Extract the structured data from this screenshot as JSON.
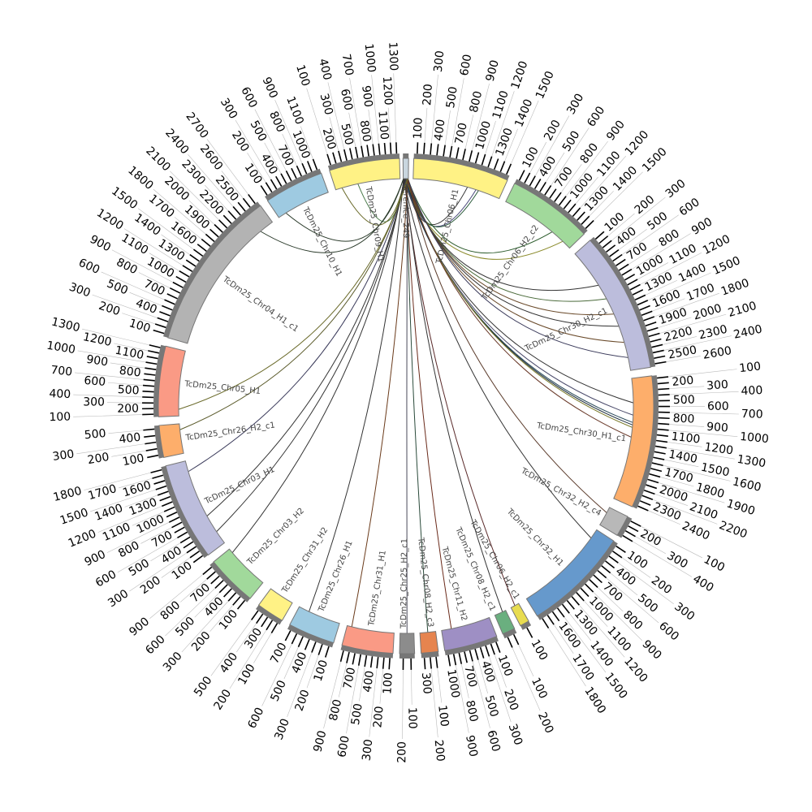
{
  "segments": [
    {
      "name": "berenice_249",
      "label": "berenice_249",
      "start": 359.3,
      "end": 360.6,
      "color": "#c9d6df",
      "max_tick": 0
    },
    {
      "name": "TcDm25_Chr06_H1",
      "label": "TcDm25_Chr06_H1",
      "start": 1.8,
      "end": 24.2,
      "color": "#fff285",
      "max_tick": 1500
    },
    {
      "name": "TcDm25_Chr06_H2_c2",
      "label": "TcDm25_Chr06_H2_c2",
      "start": 26,
      "end": 46,
      "color": "#a1d99b",
      "max_tick": 1500
    },
    {
      "name": "TcDm25_Chr30_H2_c1",
      "label": "TcDm25_Chr30_H2_c1",
      "start": 48,
      "end": 81,
      "color": "#bcbddc",
      "max_tick": 2600
    },
    {
      "name": "TcDm25_Chr30_H1_c1",
      "label": "TcDm25_Chr30_H1_c1",
      "start": 83,
      "end": 114,
      "color": "#fdae6b",
      "max_tick": 2400
    },
    {
      "name": "TcDm25_Chr32_H2_c4",
      "label": "TcDm25_Chr32_H2_c4",
      "start": 116.5,
      "end": 121.5,
      "color": "#b8b8b8",
      "max_tick": 400
    },
    {
      "name": "TcDm25_Chr32_H1",
      "label": "TcDm25_Chr32_H1",
      "start": 123,
      "end": 148,
      "color": "#6699cc",
      "max_tick": 1800
    },
    {
      "name": "TcDm25_Chr06_H2_c1",
      "label": "TcDm25_Chr06_H2_c1",
      "start": 150.3,
      "end": 152.5,
      "color": "#e8dc50",
      "max_tick": 100
    },
    {
      "name": "TcDm25_Chr08_H2_c1",
      "label": "TcDm25_Chr08_H2_c1",
      "start": 154,
      "end": 157,
      "color": "#6aaf7f",
      "max_tick": 200
    },
    {
      "name": "TcDm25_Chr11_H2",
      "label": "TcDm25_Chr11_H2",
      "start": 158.5,
      "end": 171,
      "color": "#9e8fc4",
      "max_tick": 1000
    },
    {
      "name": "TcDm25_Chr08_H2_c3",
      "label": "TcDm25_Chr08_H2_c3",
      "start": 172.5,
      "end": 176.5,
      "color": "#e6844f",
      "max_tick": 300
    },
    {
      "name": "TcDm25_Chr25_H2_c1",
      "label": "TcDm25_Chr25_H2_c1",
      "start": 178,
      "end": 181.5,
      "color": "#8c8c8c",
      "max_tick": 200
    },
    {
      "name": "TcDm25_Chr31_H1",
      "label": "TcDm25_Chr31_H1",
      "start": 183,
      "end": 195,
      "color": "#fa9a85",
      "max_tick": 900
    },
    {
      "name": "TcDm25_Chr26_H1",
      "label": "TcDm25_Chr26_H1",
      "start": 197,
      "end": 208,
      "color": "#9ecae1",
      "max_tick": 700
    },
    {
      "name": "TcDm25_Chr31_H2",
      "label": "TcDm25_Chr31_H2",
      "start": 210,
      "end": 216.5,
      "color": "#fff285",
      "max_tick": 500
    },
    {
      "name": "TcDm25_Chr03_H2",
      "label": "TcDm25_Chr03_H2",
      "start": 219,
      "end": 231,
      "color": "#a1d99b",
      "max_tick": 900
    },
    {
      "name": "TcDm25_Chr03_H1",
      "label": "TcDm25_Chr03_H1",
      "start": 233,
      "end": 256,
      "color": "#bcbddc",
      "max_tick": 1800
    },
    {
      "name": "TcDm25_Chr26_H2_c1",
      "label": "TcDm25_Chr26_H2_c1",
      "start": 258,
      "end": 265.5,
      "color": "#fdae6b",
      "max_tick": 500
    },
    {
      "name": "TcDm25_Chr05_H1",
      "label": "TcDm25_Chr05_H1",
      "start": 267.5,
      "end": 284,
      "color": "#fa9a85",
      "max_tick": 1300
    },
    {
      "name": "TcDm25_Chr04_H1_c1",
      "label": "TcDm25_Chr04_H1_c1",
      "start": 286,
      "end": 324,
      "color": "#b3b3b3",
      "max_tick": 2700
    },
    {
      "name": "TcDm25_Chr10_H1",
      "label": "TcDm25_Chr10_H1",
      "start": 326,
      "end": 340,
      "color": "#9ecae1",
      "max_tick": 1100
    },
    {
      "name": "TcDm25_Chr09_H1",
      "label": "TcDm25_Chr09_H1",
      "start": 342,
      "end": 358.5,
      "color": "#fff285",
      "max_tick": 1300
    }
  ],
  "links": [
    {
      "source": "berenice_249",
      "target": "TcDm25_Chr10_H1",
      "pos": 0.15,
      "color": "#2a3a2a"
    },
    {
      "source": "berenice_249",
      "target": "TcDm25_Chr09_H1",
      "pos": 0.35,
      "color": "#4a7a4a"
    },
    {
      "source": "berenice_249",
      "target": "TcDm25_Chr09_H1",
      "pos": 0.1,
      "color": "#6a6a2a"
    },
    {
      "source": "berenice_249",
      "target": "TcDm25_Chr06_H1",
      "pos": 0.62,
      "color": "#333333"
    },
    {
      "source": "berenice_249",
      "target": "TcDm25_Chr06_H1",
      "pos": 0.72,
      "color": "#4a4a7a"
    },
    {
      "source": "berenice_249",
      "target": "TcDm25_Chr06_H1",
      "pos": 0.75,
      "color": "#2a5a3a"
    },
    {
      "source": "berenice_249",
      "target": "TcDm25_Chr06_H2_c2",
      "pos": 0.7,
      "color": "#2a5a2a"
    },
    {
      "source": "berenice_249",
      "target": "TcDm25_Chr06_H2_c2",
      "pos": 0.88,
      "color": "#8a8a2a"
    },
    {
      "source": "berenice_249",
      "target": "TcDm25_Chr30_H2_c1",
      "pos": 0.3,
      "color": "#333333"
    },
    {
      "source": "berenice_249",
      "target": "TcDm25_Chr30_H2_c1",
      "pos": 0.42,
      "color": "#4a6a3a"
    },
    {
      "source": "berenice_249",
      "target": "TcDm25_Chr30_H2_c1",
      "pos": 0.55,
      "color": "#6a4a2a"
    },
    {
      "source": "berenice_249",
      "target": "TcDm25_Chr30_H2_c1",
      "pos": 0.65,
      "color": "#333333"
    },
    {
      "source": "berenice_249",
      "target": "TcDm25_Chr30_H2_c1",
      "pos": 0.78,
      "color": "#6a4a2a"
    },
    {
      "source": "berenice_249",
      "target": "TcDm25_Chr30_H2_c1",
      "pos": 0.9,
      "color": "#3a3a5a"
    },
    {
      "source": "berenice_249",
      "target": "TcDm25_Chr30_H1_c1",
      "pos": 0.2,
      "color": "#333333"
    },
    {
      "source": "berenice_249",
      "target": "TcDm25_Chr30_H1_c1",
      "pos": 0.3,
      "color": "#4a4a6a"
    },
    {
      "source": "berenice_249",
      "target": "TcDm25_Chr30_H1_c1",
      "pos": 0.36,
      "color": "#2a4a5a"
    },
    {
      "source": "berenice_249",
      "target": "TcDm25_Chr30_H1_c1",
      "pos": 0.38,
      "color": "#1a2a3a"
    },
    {
      "source": "berenice_249",
      "target": "TcDm25_Chr30_H1_c1",
      "pos": 0.4,
      "color": "#7a7a2a"
    },
    {
      "source": "berenice_249",
      "target": "TcDm25_Chr30_H1_c1",
      "pos": 0.48,
      "color": "#6a3a2a"
    },
    {
      "source": "berenice_249",
      "target": "TcDm25_Chr32_H2_c4",
      "pos": 0.3,
      "color": "#5a3a2a"
    },
    {
      "source": "berenice_249",
      "target": "TcDm25_Chr32_H1",
      "pos": 0.1,
      "color": "#333333"
    },
    {
      "source": "berenice_249",
      "target": "TcDm25_Chr06_H2_c1",
      "pos": 0.5,
      "color": "#5a2a2a"
    },
    {
      "source": "berenice_249",
      "target": "TcDm25_Chr08_H2_c1",
      "pos": 0.3,
      "color": "#333333"
    },
    {
      "source": "berenice_249",
      "target": "TcDm25_Chr11_H2",
      "pos": 0.8,
      "color": "#6a2a1a"
    },
    {
      "source": "berenice_249",
      "target": "TcDm25_Chr08_H2_c3",
      "pos": 0.5,
      "color": "#2a4a3a"
    },
    {
      "source": "berenice_249",
      "target": "TcDm25_Chr25_H2_c1",
      "pos": 0.5,
      "color": "#4a4a5a"
    },
    {
      "source": "berenice_249",
      "target": "TcDm25_Chr31_H1",
      "pos": 0.9,
      "color": "#6a3a1a"
    },
    {
      "source": "berenice_249",
      "target": "TcDm25_Chr26_H1",
      "pos": 0.75,
      "color": "#333333"
    },
    {
      "source": "berenice_249",
      "target": "TcDm25_Chr03_H2",
      "pos": 0.9,
      "color": "#333333"
    },
    {
      "source": "berenice_249",
      "target": "TcDm25_Chr03_H1",
      "pos": 0.15,
      "color": "#333333"
    },
    {
      "source": "berenice_249",
      "target": "TcDm25_Chr03_H1",
      "pos": 0.35,
      "color": "#333333"
    },
    {
      "source": "berenice_249",
      "target": "TcDm25_Chr03_H1",
      "pos": 0.88,
      "color": "#3a3a5a"
    },
    {
      "source": "berenice_249",
      "target": "TcDm25_Chr26_H2_c1",
      "pos": 0.8,
      "color": "#5a5a2a"
    },
    {
      "source": "berenice_249",
      "target": "TcDm25_Chr05_H1",
      "pos": 0.1,
      "color": "#6a6a2a"
    },
    {
      "source": "berenice_249",
      "target": "TcDm25_Chr04_H1_c1",
      "pos": 0.9,
      "color": "#2a3a2a"
    }
  ]
}
